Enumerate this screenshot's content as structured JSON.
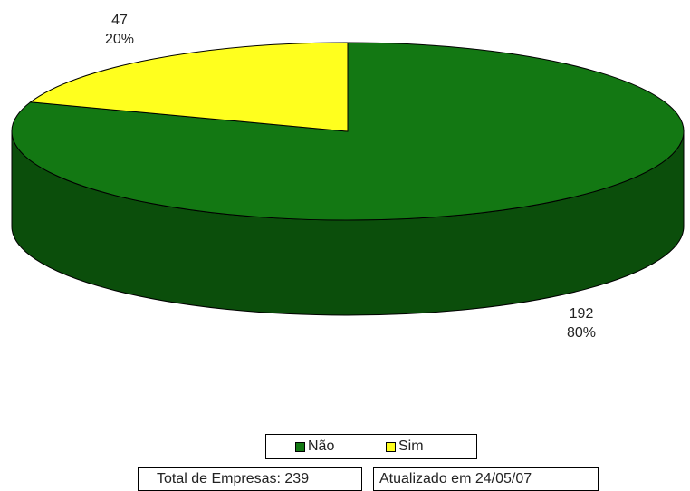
{
  "chart_data": {
    "type": "pie",
    "title": "",
    "slices": [
      {
        "name": "Não",
        "value": 192,
        "percent": "80%",
        "color": "#137813",
        "side_color": "#0b4e0b"
      },
      {
        "name": "Sim",
        "value": 47,
        "percent": "20%",
        "color": "#ffff1e",
        "side_color": "#c8c800"
      }
    ],
    "legend_position": "bottom"
  },
  "footer": {
    "total_label": "Total de Empresas: 239",
    "updated_label": "Atualizado em 24/05/07"
  }
}
